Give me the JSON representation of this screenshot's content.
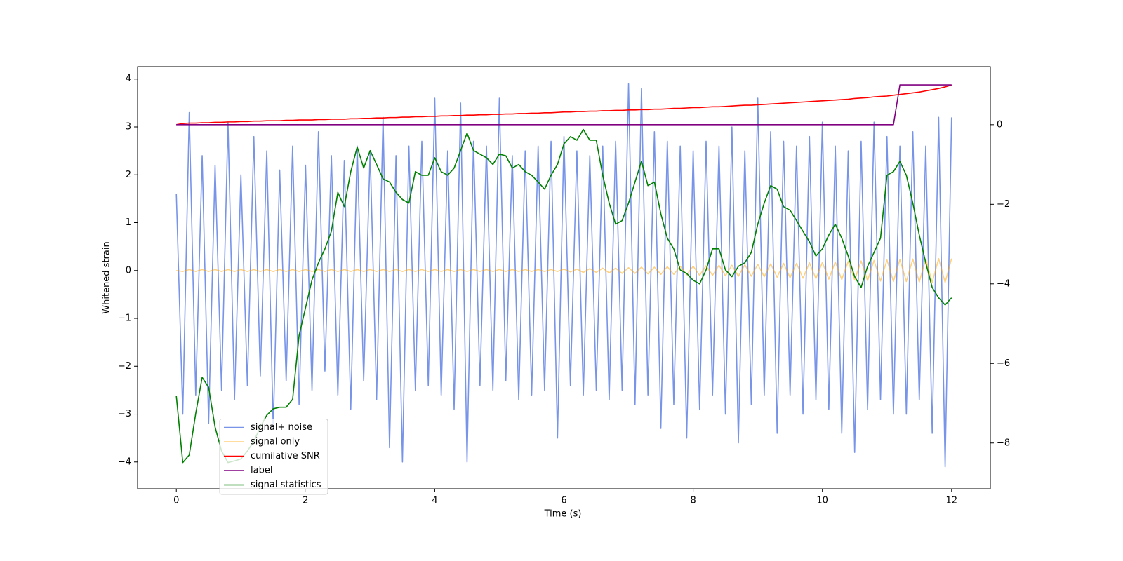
{
  "chart_data": {
    "type": "line",
    "xlabel": "Time (s)",
    "ylabel": "Whitened strain",
    "xlim": [
      -0.6,
      12.6
    ],
    "ylim": [
      -4.56,
      4.26
    ],
    "y2lim": [
      -9.15,
      1.46
    ],
    "xticks": [
      0,
      2,
      4,
      6,
      8,
      10,
      12
    ],
    "yticks": [
      {
        "value": -4,
        "label": "−4"
      },
      {
        "value": -3,
        "label": "−3"
      },
      {
        "value": -2,
        "label": "−2"
      },
      {
        "value": -1,
        "label": "−1"
      },
      0,
      1,
      2,
      3,
      4
    ],
    "y2ticks": [
      {
        "value": -8,
        "label": "−8"
      },
      {
        "value": -6,
        "label": "−6"
      },
      {
        "value": -4,
        "label": "−4"
      },
      {
        "value": -2,
        "label": "−2"
      },
      0
    ],
    "legend": "lower left",
    "x": [
      0,
      0.1,
      0.2,
      0.3,
      0.4,
      0.5,
      0.6,
      0.7,
      0.8,
      0.9,
      1,
      1.1,
      1.2,
      1.3,
      1.4,
      1.5,
      1.6,
      1.7,
      1.8,
      1.9,
      2,
      2.1,
      2.2,
      2.3,
      2.4,
      2.5,
      2.6,
      2.7,
      2.8,
      2.9,
      3,
      3.1,
      3.2,
      3.3,
      3.4,
      3.5,
      3.6,
      3.7,
      3.8,
      3.9,
      4,
      4.1,
      4.2,
      4.3,
      4.4,
      4.5,
      4.6,
      4.7,
      4.8,
      4.9,
      5,
      5.1,
      5.2,
      5.3,
      5.4,
      5.5,
      5.6,
      5.7,
      5.8,
      5.9,
      6,
      6.1,
      6.2,
      6.3,
      6.4,
      6.5,
      6.6,
      6.7,
      6.8,
      6.9,
      7,
      7.1,
      7.2,
      7.3,
      7.4,
      7.5,
      7.6,
      7.7,
      7.8,
      7.9,
      8,
      8.1,
      8.2,
      8.3,
      8.4,
      8.5,
      8.6,
      8.7,
      8.8,
      8.9,
      9,
      9.1,
      9.2,
      9.3,
      9.4,
      9.5,
      9.6,
      9.7,
      9.8,
      9.9,
      10,
      10.1,
      10.2,
      10.3,
      10.4,
      10.5,
      10.6,
      10.7,
      10.8,
      10.9,
      11,
      11.1,
      11.2,
      11.3,
      11.4,
      11.5,
      11.6,
      11.7,
      11.8,
      11.9,
      12
    ],
    "series": [
      {
        "name": "signal+ noise",
        "color": "#7894e8",
        "axis": "y",
        "values": [
          1.6,
          -3.0,
          3.3,
          -2.6,
          2.4,
          -3.2,
          2.2,
          -2.5,
          3.1,
          -2.7,
          2.0,
          -2.4,
          2.8,
          -2.2,
          2.5,
          -3.3,
          2.1,
          -2.3,
          2.6,
          -2.8,
          2.2,
          -2.5,
          2.9,
          -2.1,
          2.4,
          -2.6,
          2.3,
          -2.9,
          2.6,
          -2.3,
          2.5,
          -2.7,
          3.2,
          -3.7,
          2.4,
          -4.0,
          2.6,
          -2.5,
          2.7,
          -2.4,
          3.6,
          -2.6,
          2.5,
          -2.9,
          3.5,
          -4.0,
          2.7,
          -2.4,
          2.6,
          -2.5,
          3.6,
          -2.3,
          2.4,
          -2.7,
          2.5,
          -2.6,
          2.6,
          -2.5,
          2.7,
          -3.5,
          2.8,
          -2.4,
          2.5,
          -2.6,
          2.4,
          -2.5,
          2.6,
          -2.7,
          2.7,
          -2.5,
          3.9,
          -2.8,
          3.8,
          -2.6,
          2.9,
          -3.3,
          2.7,
          -2.8,
          2.6,
          -3.5,
          2.5,
          -2.9,
          2.7,
          -2.6,
          2.6,
          -3.0,
          3.0,
          -3.6,
          2.5,
          -2.8,
          3.6,
          -2.6,
          2.9,
          -3.4,
          2.7,
          -2.6,
          2.6,
          -3.0,
          2.8,
          -2.7,
          3.1,
          -2.9,
          2.6,
          -3.4,
          2.5,
          -3.8,
          2.7,
          -2.9,
          3.1,
          -2.7,
          2.8,
          -3.0,
          2.6,
          -3.0,
          2.9,
          -2.7,
          2.6,
          -3.4,
          3.2,
          -4.1,
          3.2
        ]
      },
      {
        "name": "signal only",
        "color": "#ffa500",
        "axis": "y",
        "values": [
          0,
          -0.02,
          0.02,
          -0.02,
          0.02,
          -0.02,
          0.02,
          -0.02,
          0.02,
          -0.02,
          0.02,
          -0.02,
          0.02,
          -0.02,
          0.02,
          -0.02,
          0.02,
          -0.02,
          0.02,
          -0.02,
          0.02,
          -0.02,
          0.02,
          -0.02,
          0.02,
          -0.02,
          0.02,
          -0.02,
          0.02,
          -0.02,
          0.02,
          -0.02,
          0.02,
          -0.02,
          0.02,
          -0.02,
          0.02,
          -0.02,
          0.02,
          -0.02,
          0.02,
          -0.02,
          0.02,
          -0.02,
          0.02,
          -0.02,
          0.02,
          -0.02,
          0.02,
          -0.02,
          0.02,
          -0.02,
          0.02,
          -0.02,
          0.02,
          -0.02,
          0.02,
          -0.02,
          0.02,
          -0.02,
          0.03,
          -0.03,
          0.03,
          -0.04,
          0.04,
          -0.04,
          0.05,
          -0.05,
          0.05,
          -0.06,
          0.06,
          -0.06,
          0.07,
          -0.07,
          0.07,
          -0.08,
          0.08,
          -0.08,
          0.09,
          -0.09,
          0.09,
          -0.1,
          0.1,
          -0.1,
          0.11,
          -0.11,
          0.11,
          -0.12,
          0.12,
          -0.12,
          0.13,
          -0.13,
          0.14,
          -0.14,
          0.15,
          -0.15,
          0.15,
          -0.16,
          0.16,
          -0.17,
          0.17,
          -0.18,
          0.18,
          -0.19,
          0.19,
          -0.2,
          0.2,
          -0.21,
          0.21,
          -0.22,
          0.22,
          -0.23,
          0.23,
          -0.23,
          0.24,
          -0.24,
          0.24,
          -0.25,
          0.25,
          -0.25,
          0.25
        ]
      },
      {
        "name": "cumilative SNR",
        "color": "#ff0000",
        "axis": "y2",
        "values": [
          0,
          0.03,
          0.04,
          0.04,
          0.05,
          0.05,
          0.06,
          0.06,
          0.07,
          0.07,
          0.08,
          0.08,
          0.09,
          0.09,
          0.1,
          0.1,
          0.1,
          0.11,
          0.11,
          0.12,
          0.12,
          0.12,
          0.13,
          0.13,
          0.14,
          0.14,
          0.14,
          0.15,
          0.15,
          0.16,
          0.16,
          0.17,
          0.17,
          0.18,
          0.18,
          0.19,
          0.19,
          0.2,
          0.2,
          0.21,
          0.21,
          0.22,
          0.22,
          0.23,
          0.23,
          0.24,
          0.24,
          0.25,
          0.25,
          0.26,
          0.26,
          0.27,
          0.27,
          0.28,
          0.28,
          0.29,
          0.29,
          0.3,
          0.3,
          0.31,
          0.32,
          0.32,
          0.33,
          0.33,
          0.34,
          0.34,
          0.35,
          0.35,
          0.36,
          0.36,
          0.37,
          0.37,
          0.38,
          0.38,
          0.39,
          0.39,
          0.4,
          0.41,
          0.41,
          0.42,
          0.43,
          0.43,
          0.44,
          0.45,
          0.45,
          0.46,
          0.47,
          0.48,
          0.49,
          0.49,
          0.5,
          0.51,
          0.52,
          0.53,
          0.54,
          0.55,
          0.56,
          0.57,
          0.58,
          0.59,
          0.6,
          0.61,
          0.62,
          0.63,
          0.64,
          0.66,
          0.67,
          0.68,
          0.7,
          0.71,
          0.72,
          0.74,
          0.76,
          0.78,
          0.8,
          0.82,
          0.85,
          0.88,
          0.91,
          0.95,
          1.0
        ]
      },
      {
        "name": "label",
        "color": "#800080",
        "axis": "y2",
        "values": [
          0,
          0,
          0,
          0,
          0,
          0,
          0,
          0,
          0,
          0,
          0,
          0,
          0,
          0,
          0,
          0,
          0,
          0,
          0,
          0,
          0,
          0,
          0,
          0,
          0,
          0,
          0,
          0,
          0,
          0,
          0,
          0,
          0,
          0,
          0,
          0,
          0,
          0,
          0,
          0,
          0,
          0,
          0,
          0,
          0,
          0,
          0,
          0,
          0,
          0,
          0,
          0,
          0,
          0,
          0,
          0,
          0,
          0,
          0,
          0,
          0,
          0,
          0,
          0,
          0,
          0,
          0,
          0,
          0,
          0,
          0,
          0,
          0,
          0,
          0,
          0,
          0,
          0,
          0,
          0,
          0,
          0,
          0,
          0,
          0,
          0,
          0,
          0,
          0,
          0,
          0,
          0,
          0,
          0,
          0,
          0,
          0,
          0,
          0,
          0,
          0,
          0,
          0,
          0,
          0,
          0,
          0,
          0,
          0,
          0,
          0,
          0,
          1,
          1,
          1,
          1,
          1,
          1,
          1,
          1,
          1
        ]
      },
      {
        "name": "signal statistics",
        "color": "#008000",
        "axis": "y2",
        "values": [
          -6.82,
          -8.49,
          -8.3,
          -7.26,
          -6.35,
          -6.6,
          -7.6,
          -8.2,
          -8.49,
          -8.45,
          -8.4,
          -8.2,
          -7.96,
          -7.6,
          -7.3,
          -7.14,
          -7.1,
          -7.1,
          -6.9,
          -5.3,
          -4.6,
          -3.9,
          -3.47,
          -3.12,
          -2.68,
          -1.7,
          -2.06,
          -1.18,
          -0.56,
          -1.09,
          -0.65,
          -1.0,
          -1.36,
          -1.44,
          -1.7,
          -1.88,
          -1.97,
          -1.18,
          -1.27,
          -1.27,
          -0.83,
          -1.18,
          -1.27,
          -1.09,
          -0.65,
          -0.21,
          -0.65,
          -0.74,
          -0.83,
          -1.0,
          -0.74,
          -0.78,
          -1.09,
          -1.0,
          -1.18,
          -1.27,
          -1.44,
          -1.62,
          -1.27,
          -1.0,
          -0.48,
          -0.3,
          -0.39,
          -0.12,
          -0.39,
          -0.39,
          -1.27,
          -1.97,
          -2.5,
          -2.41,
          -1.97,
          -1.44,
          -0.92,
          -1.53,
          -1.44,
          -2.24,
          -2.85,
          -3.12,
          -3.65,
          -3.74,
          -3.91,
          -4.0,
          -3.65,
          -3.12,
          -3.12,
          -3.65,
          -3.82,
          -3.56,
          -3.47,
          -3.21,
          -2.5,
          -1.97,
          -1.53,
          -1.62,
          -2.06,
          -2.15,
          -2.41,
          -2.68,
          -2.94,
          -3.3,
          -3.12,
          -2.77,
          -2.5,
          -2.85,
          -3.3,
          -3.82,
          -4.09,
          -3.56,
          -3.21,
          -2.85,
          -1.27,
          -1.18,
          -0.92,
          -1.27,
          -1.97,
          -2.77,
          -3.47,
          -4.09,
          -4.35,
          -4.53,
          -4.35
        ]
      }
    ]
  }
}
